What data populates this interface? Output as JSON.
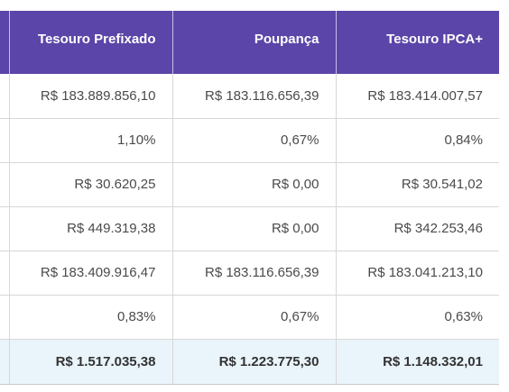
{
  "table": {
    "headers": [
      "Tesouro Prefixado",
      "Poupança",
      "Tesouro IPCA+"
    ],
    "rows": [
      [
        "R$ 183.889.856,10",
        "R$ 183.116.656,39",
        "R$ 183.414.007,57"
      ],
      [
        "1,10%",
        "0,67%",
        "0,84%"
      ],
      [
        "R$ 30.620,25",
        "R$ 0,00",
        "R$ 30.541,02"
      ],
      [
        "R$ 449.319,38",
        "R$ 0,00",
        "R$ 342.253,46"
      ],
      [
        "R$ 183.409.916,47",
        "R$ 183.116.656,39",
        "R$ 183.041.213,10"
      ],
      [
        "0,83%",
        "0,67%",
        "0,63%"
      ]
    ],
    "total_row": [
      "R$ 1.517.035,38",
      "R$ 1.223.775,30",
      "R$ 1.148.332,01"
    ]
  },
  "colors": {
    "header_bg": "#5b45a8",
    "header_text": "#ffffff",
    "total_row_bg": "#eaf4fb",
    "border": "#d7d7d7"
  }
}
